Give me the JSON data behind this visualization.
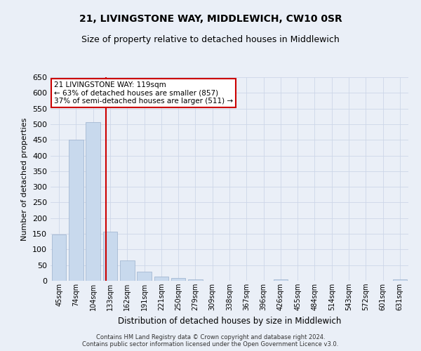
{
  "title": "21, LIVINGSTONE WAY, MIDDLEWICH, CW10 0SR",
  "subtitle": "Size of property relative to detached houses in Middlewich",
  "xlabel": "Distribution of detached houses by size in Middlewich",
  "ylabel": "Number of detached properties",
  "categories": [
    "45sqm",
    "74sqm",
    "104sqm",
    "133sqm",
    "162sqm",
    "191sqm",
    "221sqm",
    "250sqm",
    "279sqm",
    "309sqm",
    "338sqm",
    "367sqm",
    "396sqm",
    "426sqm",
    "455sqm",
    "484sqm",
    "514sqm",
    "543sqm",
    "572sqm",
    "601sqm",
    "631sqm"
  ],
  "values": [
    148,
    450,
    507,
    157,
    65,
    30,
    13,
    8,
    5,
    0,
    0,
    0,
    0,
    5,
    0,
    0,
    0,
    0,
    0,
    0,
    5
  ],
  "bar_color": "#c8d9ed",
  "bar_edge_color": "#9ab0cc",
  "vline_x": 2.75,
  "vline_color": "#cc0000",
  "annotation_line1": "21 LIVINGSTONE WAY: 119sqm",
  "annotation_line2": "← 63% of detached houses are smaller (857)",
  "annotation_line3": "37% of semi-detached houses are larger (511) →",
  "annotation_box_color": "#ffffff",
  "annotation_box_edge": "#cc0000",
  "ylim": [
    0,
    650
  ],
  "yticks": [
    0,
    50,
    100,
    150,
    200,
    250,
    300,
    350,
    400,
    450,
    500,
    550,
    600,
    650
  ],
  "grid_color": "#cdd6e8",
  "footer": "Contains HM Land Registry data © Crown copyright and database right 2024.\nContains public sector information licensed under the Open Government Licence v3.0.",
  "bg_color": "#eaeff7",
  "plot_bg_color": "#eaeff7",
  "title_fontsize": 10,
  "subtitle_fontsize": 9
}
